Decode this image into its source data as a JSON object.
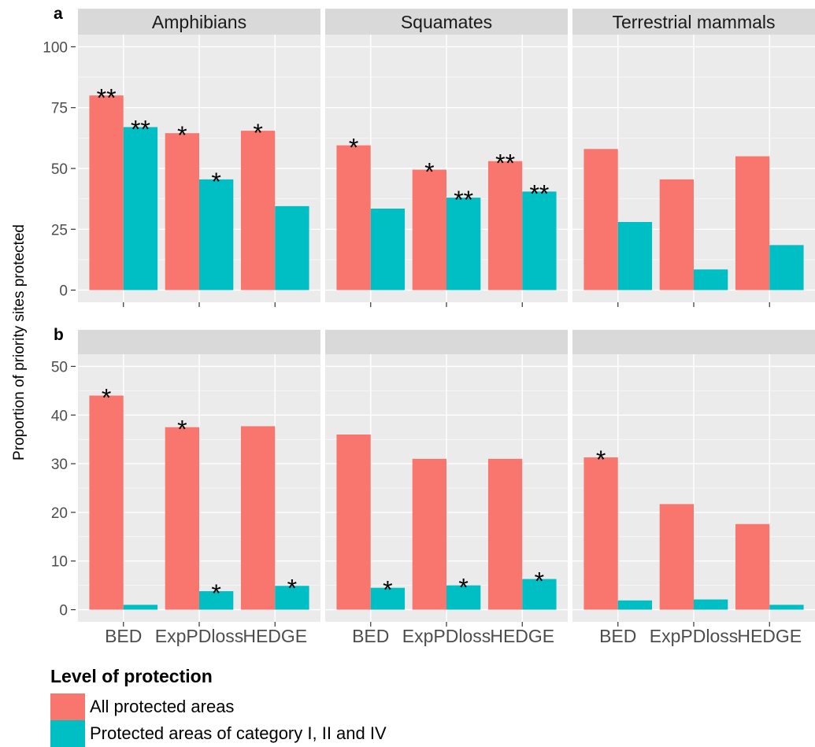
{
  "figure": {
    "ylabel": "Proportion of priority sites protected",
    "colors": {
      "all": "#F8766D",
      "cat": "#00BFC4"
    }
  },
  "chart_data": [
    {
      "type": "bar",
      "panel_letter": "a",
      "ylim": [
        0,
        100
      ],
      "yticks": [
        0,
        25,
        50,
        75,
        100
      ],
      "categories": [
        "BED",
        "ExpPDloss",
        "HEDGE"
      ],
      "facets": [
        {
          "title": "Amphibians",
          "series": [
            {
              "name": "All protected areas",
              "values": [
                80,
                64.5,
                65.5
              ],
              "stars": [
                "**",
                "*",
                "*"
              ]
            },
            {
              "name": "Protected areas of category I, II and IV",
              "values": [
                67,
                45.5,
                34.5
              ],
              "stars": [
                "**",
                "*",
                ""
              ]
            }
          ]
        },
        {
          "title": "Squamates",
          "series": [
            {
              "name": "All protected areas",
              "values": [
                59.5,
                49.5,
                53
              ],
              "stars": [
                "*",
                "*",
                "**"
              ]
            },
            {
              "name": "Protected areas of category I, II and IV",
              "values": [
                33.5,
                38,
                40.5
              ],
              "stars": [
                "",
                "**",
                "**"
              ]
            }
          ]
        },
        {
          "title": "Terrestrial mammals",
          "series": [
            {
              "name": "All protected areas",
              "values": [
                58,
                45.5,
                55
              ],
              "stars": [
                "",
                "",
                ""
              ]
            },
            {
              "name": "Protected areas of category I, II and IV",
              "values": [
                28,
                8.5,
                18.5
              ],
              "stars": [
                "",
                "",
                ""
              ]
            }
          ]
        }
      ]
    },
    {
      "type": "bar",
      "panel_letter": "b",
      "ylim": [
        0,
        50
      ],
      "yticks": [
        0,
        10,
        20,
        30,
        40,
        50
      ],
      "categories": [
        "BED",
        "ExpPDloss",
        "HEDGE"
      ],
      "facets": [
        {
          "title": "",
          "series": [
            {
              "name": "All protected areas",
              "values": [
                44,
                37.5,
                37.7
              ],
              "stars": [
                "*",
                "*",
                ""
              ]
            },
            {
              "name": "Protected areas of category I, II and IV",
              "values": [
                1,
                3.8,
                4.9
              ],
              "stars": [
                "",
                "*",
                "*"
              ]
            }
          ]
        },
        {
          "title": "",
          "series": [
            {
              "name": "All protected areas",
              "values": [
                36,
                31,
                31
              ],
              "stars": [
                "",
                "",
                ""
              ]
            },
            {
              "name": "Protected areas of category I, II and IV",
              "values": [
                4.5,
                5,
                6.3
              ],
              "stars": [
                "*",
                "*",
                "*"
              ]
            }
          ]
        },
        {
          "title": "",
          "series": [
            {
              "name": "All protected areas",
              "values": [
                31.3,
                21.7,
                17.6
              ],
              "stars": [
                "*",
                "",
                ""
              ]
            },
            {
              "name": "Protected areas of category I, II and IV",
              "values": [
                1.9,
                2.1,
                1
              ],
              "stars": [
                "",
                "",
                ""
              ]
            }
          ]
        }
      ]
    }
  ],
  "legend": {
    "title": "Level of protection",
    "items": [
      {
        "label": "All protected areas",
        "color": "#F8766D"
      },
      {
        "label": "Protected areas of category I, II and IV",
        "color": "#00BFC4"
      }
    ]
  }
}
